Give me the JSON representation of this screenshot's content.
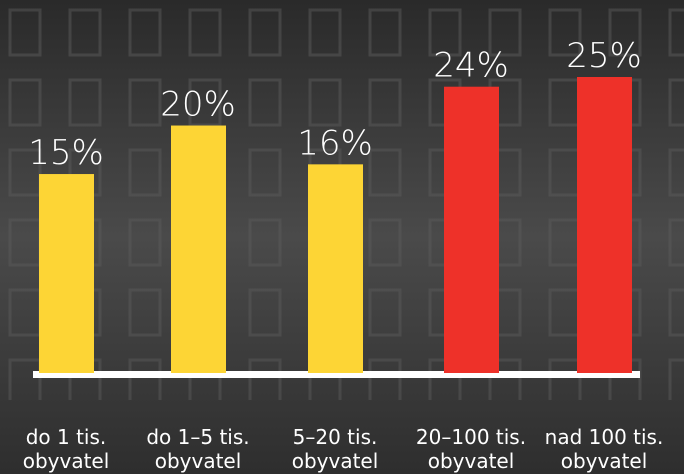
{
  "chart_data": {
    "type": "bar",
    "categories": [
      [
        "do 1 tis.",
        "obyvatel"
      ],
      [
        "do 1–5 tis.",
        "obyvatel"
      ],
      [
        "5–20 tis.",
        "obyvatel"
      ],
      [
        "20–100 tis.",
        "obyvatel"
      ],
      [
        "nad 100 tis.",
        "obyvatel"
      ]
    ],
    "values": [
      15,
      20,
      16,
      24,
      25
    ],
    "value_labels": [
      "15%",
      "20%",
      "16%",
      "24%",
      "25%"
    ],
    "colors": [
      "#fdd535",
      "#fdd535",
      "#fdd535",
      "#ee3129",
      "#ee3129"
    ],
    "ylim": [
      -5.5,
      25
    ]
  }
}
